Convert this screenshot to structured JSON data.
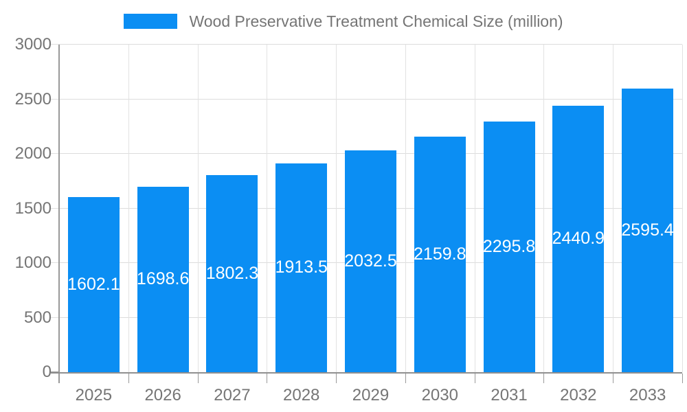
{
  "chart_data": {
    "type": "bar",
    "title": "Wood Preservative Treatment Chemical Size (million)",
    "categories": [
      "2025",
      "2026",
      "2027",
      "2028",
      "2029",
      "2030",
      "2031",
      "2032",
      "2033"
    ],
    "values": [
      1602.1,
      1698.6,
      1802.3,
      1913.5,
      2032.5,
      2159.8,
      2295.8,
      2440.9,
      2595.4
    ],
    "value_labels": [
      "1602.1",
      "1698.6",
      "1802.3",
      "1913.5",
      "2032.5",
      "2159.8",
      "2295.8",
      "2440.9",
      "2595.4"
    ],
    "xlabel": "",
    "ylabel": "",
    "ylim": [
      0,
      3000
    ],
    "yticks": [
      0,
      500,
      1000,
      1500,
      2000,
      2500,
      3000
    ],
    "grid": true,
    "legend_position": "top",
    "colors": {
      "bar": "#0b8ef3",
      "axis_text": "#757575",
      "bar_label_text": "#ffffff",
      "gridline": "#dcdcdc",
      "axis_line": "#999999"
    }
  },
  "legend": {
    "label": "Wood Preservative Treatment Chemical Size (million)"
  }
}
